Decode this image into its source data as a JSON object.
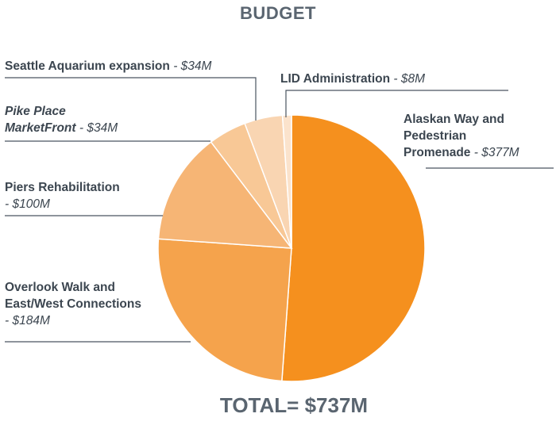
{
  "chart_data": {
    "type": "pie",
    "title": "BUDGET",
    "total_label": "TOTAL= $737M",
    "total": 737,
    "unit": "$M",
    "slices": [
      {
        "name": "Alaskan Way and Pedestrian Promenade",
        "label_lines": [
          "Alaskan Way and",
          "Pedestrian",
          "Promenade"
        ],
        "amount_text": "$377M",
        "value": 377,
        "color": "#f5901e"
      },
      {
        "name": "Overlook Walk and East/West Connections",
        "label_lines": [
          "Overlook Walk and",
          "East/West Connections"
        ],
        "amount_text": "$184M",
        "value": 184,
        "color": "#f5a34c"
      },
      {
        "name": "Piers Rehabilitation",
        "label_lines": [
          "Piers Rehabilitation"
        ],
        "amount_text": "$100M",
        "value": 100,
        "color": "#f6b575"
      },
      {
        "name": "Pike Place MarketFront",
        "label_lines": [
          "Pike Place",
          "MarketFront"
        ],
        "amount_text": "$34M",
        "value": 34,
        "color": "#f8c896"
      },
      {
        "name": "Seattle Aquarium expansion",
        "label_lines": [
          "Seattle Aquarium expansion"
        ],
        "amount_text": "$34M",
        "value": 34,
        "color": "#f9d5b2"
      },
      {
        "name": "LID Administration",
        "label_lines": [
          "LID Administration"
        ],
        "amount_text": "$8M",
        "value": 8,
        "color": "#fbe3cc"
      }
    ]
  }
}
